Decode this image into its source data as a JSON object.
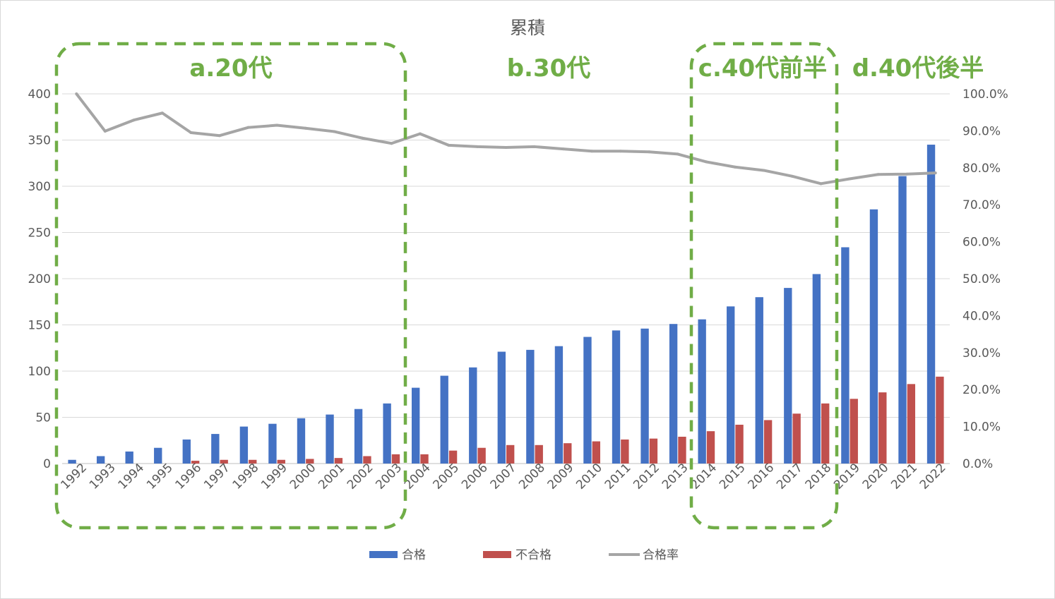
{
  "chart_data": {
    "type": "bar",
    "title": "累積",
    "categories": [
      "1992",
      "1993",
      "1994",
      "1995",
      "1996",
      "1997",
      "1998",
      "1999",
      "2000",
      "2001",
      "2002",
      "2003",
      "2004",
      "2005",
      "2006",
      "2007",
      "2008",
      "2009",
      "2010",
      "2011",
      "2012",
      "2013",
      "2014",
      "2015",
      "2016",
      "2017",
      "2018",
      "2019",
      "2020",
      "2021",
      "2022"
    ],
    "series": [
      {
        "name": "合格",
        "kind": "bar",
        "axis": "left",
        "color": "#4472c4",
        "values": [
          4,
          8,
          13,
          17,
          26,
          32,
          40,
          43,
          49,
          53,
          59,
          65,
          82,
          95,
          104,
          121,
          123,
          127,
          137,
          144,
          146,
          151,
          156,
          170,
          180,
          190,
          205,
          234,
          275,
          311,
          345
        ]
      },
      {
        "name": "不合格",
        "kind": "bar",
        "axis": "left",
        "color": "#c0504d",
        "values": [
          0,
          0,
          0,
          0,
          3,
          4,
          4,
          4,
          5,
          6,
          8,
          10,
          10,
          14,
          17,
          20,
          20,
          22,
          24,
          26,
          27,
          29,
          35,
          42,
          47,
          54,
          65,
          70,
          77,
          86,
          94
        ]
      },
      {
        "name": "合格率",
        "kind": "line",
        "axis": "right",
        "color": "#a5a5a5",
        "values": [
          100.0,
          89.9,
          92.9,
          94.8,
          89.5,
          88.7,
          90.9,
          91.5,
          90.7,
          89.8,
          88.0,
          86.6,
          89.2,
          86.1,
          85.7,
          85.5,
          85.7,
          85.1,
          84.5,
          84.5,
          84.3,
          83.7,
          81.6,
          80.2,
          79.3,
          77.7,
          75.7,
          77.0,
          78.2,
          78.3,
          78.6
        ]
      }
    ],
    "y_left": {
      "min": 0,
      "max": 400,
      "ticks": [
        "0",
        "50",
        "100",
        "150",
        "200",
        "250",
        "300",
        "350",
        "400"
      ]
    },
    "y_right": {
      "min": 0,
      "max": 100,
      "ticks": [
        "0.0%",
        "10.0%",
        "20.0%",
        "30.0%",
        "40.0%",
        "50.0%",
        "60.0%",
        "70.0%",
        "80.0%",
        "90.0%",
        "100.0%"
      ]
    },
    "grid": true,
    "legend": "bottom",
    "legend_labels": [
      "合格",
      "不合格",
      "合格率"
    ],
    "annotations": [
      {
        "label": "a.20代",
        "boxed": true
      },
      {
        "label": "b.30代",
        "boxed": false
      },
      {
        "label": "c.40代前半",
        "boxed": true
      },
      {
        "label": "d.40代後半",
        "boxed": false
      }
    ],
    "annotation_color": "#70ad47"
  }
}
